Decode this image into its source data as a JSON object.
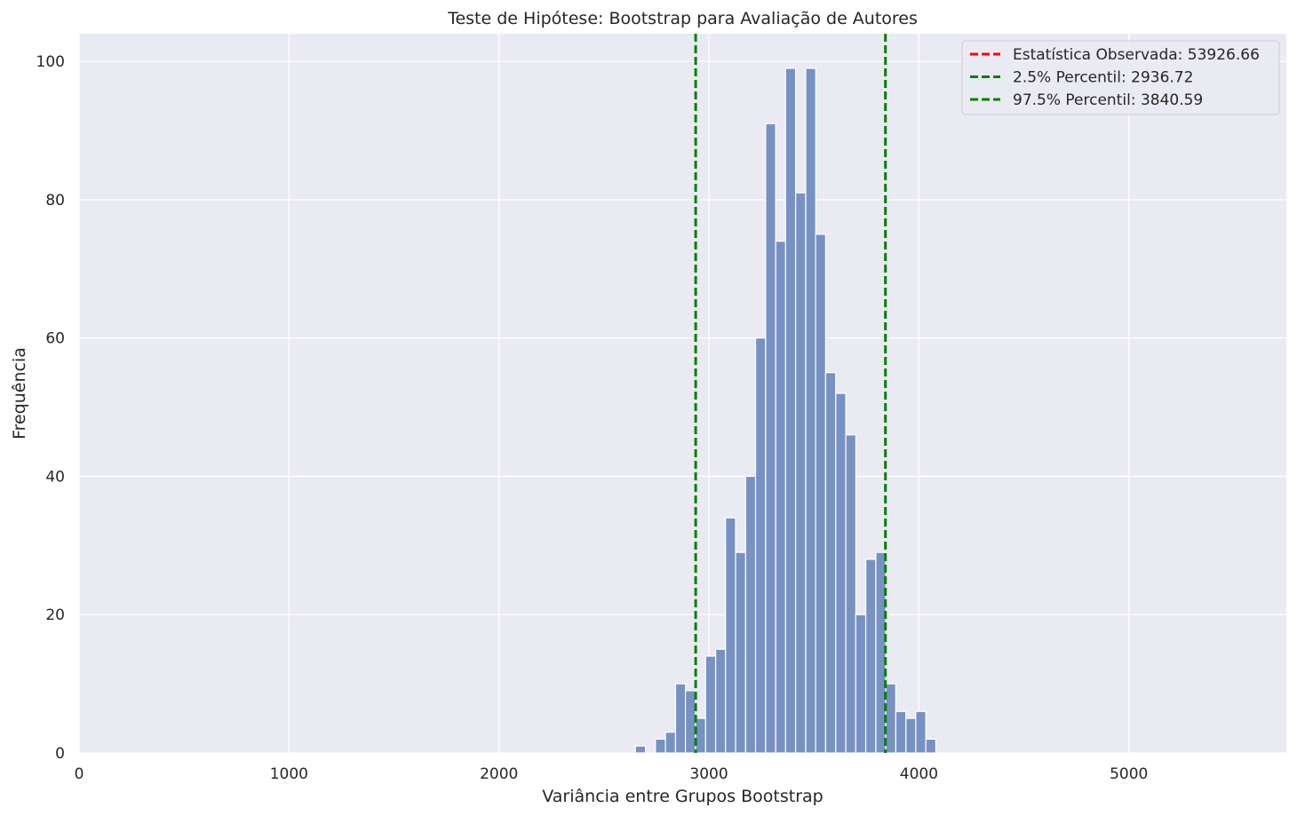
{
  "chart_data": {
    "type": "bar",
    "title": "Teste de Hipótese: Bootstrap para Avaliação de Autores",
    "xlabel": "Variância entre Grupos Bootstrap",
    "ylabel": "Frequência",
    "xlim": [
      0,
      5750
    ],
    "ylim": [
      0,
      104
    ],
    "x_ticks": [
      0,
      1000,
      2000,
      3000,
      4000,
      5000
    ],
    "y_ticks": [
      0,
      20,
      40,
      60,
      80,
      100
    ],
    "grid": true,
    "bin_width": 47.7,
    "bins": [
      {
        "start": 2650,
        "count": 1
      },
      {
        "start": 2698,
        "count": 0
      },
      {
        "start": 2745,
        "count": 2
      },
      {
        "start": 2793,
        "count": 3
      },
      {
        "start": 2841,
        "count": 10
      },
      {
        "start": 2888,
        "count": 9
      },
      {
        "start": 2936,
        "count": 5
      },
      {
        "start": 2984,
        "count": 14
      },
      {
        "start": 3032,
        "count": 15
      },
      {
        "start": 3079,
        "count": 34
      },
      {
        "start": 3127,
        "count": 29
      },
      {
        "start": 3175,
        "count": 40
      },
      {
        "start": 3222,
        "count": 60
      },
      {
        "start": 3270,
        "count": 91
      },
      {
        "start": 3318,
        "count": 74
      },
      {
        "start": 3365,
        "count": 99
      },
      {
        "start": 3413,
        "count": 81
      },
      {
        "start": 3461,
        "count": 99
      },
      {
        "start": 3508,
        "count": 75
      },
      {
        "start": 3556,
        "count": 55
      },
      {
        "start": 3604,
        "count": 52
      },
      {
        "start": 3652,
        "count": 46
      },
      {
        "start": 3699,
        "count": 20
      },
      {
        "start": 3747,
        "count": 28
      },
      {
        "start": 3795,
        "count": 29
      },
      {
        "start": 3842,
        "count": 10
      },
      {
        "start": 3890,
        "count": 6
      },
      {
        "start": 3938,
        "count": 5
      },
      {
        "start": 3985,
        "count": 6
      },
      {
        "start": 4033,
        "count": 2
      }
    ],
    "bar_color": "#7891C3",
    "vlines": [
      {
        "name": "2.5% Percentil: 2936.72",
        "x": 2936.72,
        "color": "#008000"
      },
      {
        "name": "97.5% Percentil: 3840.59",
        "x": 3840.59,
        "color": "#008000"
      }
    ],
    "legend": {
      "position": "top-right",
      "entries": [
        {
          "label": "Estatística Observada: 53926.66",
          "color": "#FF0000"
        },
        {
          "label": "2.5% Percentil: 2936.72",
          "color": "#008000"
        },
        {
          "label": "97.5% Percentil: 3840.59",
          "color": "#008000"
        }
      ]
    },
    "plot_background": "#EAEAF2",
    "grid_color": "#FFFFFF"
  }
}
